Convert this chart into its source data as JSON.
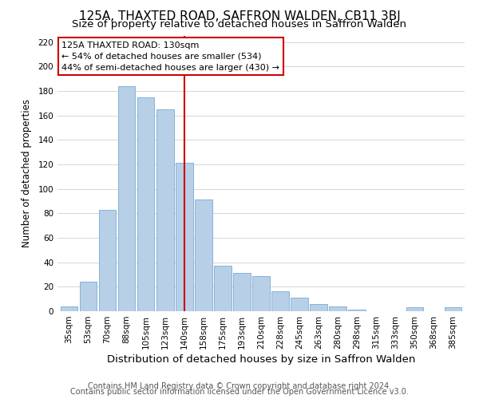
{
  "title": "125A, THAXTED ROAD, SAFFRON WALDEN, CB11 3BJ",
  "subtitle": "Size of property relative to detached houses in Saffron Walden",
  "xlabel": "Distribution of detached houses by size in Saffron Walden",
  "ylabel": "Number of detached properties",
  "bar_labels": [
    "35sqm",
    "53sqm",
    "70sqm",
    "88sqm",
    "105sqm",
    "123sqm",
    "140sqm",
    "158sqm",
    "175sqm",
    "193sqm",
    "210sqm",
    "228sqm",
    "245sqm",
    "263sqm",
    "280sqm",
    "298sqm",
    "315sqm",
    "333sqm",
    "350sqm",
    "368sqm",
    "385sqm"
  ],
  "bar_values": [
    4,
    24,
    83,
    184,
    175,
    165,
    121,
    91,
    37,
    31,
    29,
    16,
    11,
    6,
    4,
    1,
    0,
    0,
    3,
    0,
    3
  ],
  "bar_color": "#b8cfe8",
  "bar_edge_color": "#7aaad0",
  "vline_color": "#cc0000",
  "vline_x_index": 6.0,
  "annotation_title": "125A THAXTED ROAD: 130sqm",
  "annotation_line1": "← 54% of detached houses are smaller (534)",
  "annotation_line2": "44% of semi-detached houses are larger (430) →",
  "annotation_box_color": "#ffffff",
  "annotation_box_edge": "#cc0000",
  "ylim": [
    0,
    225
  ],
  "yticks": [
    0,
    20,
    40,
    60,
    80,
    100,
    120,
    140,
    160,
    180,
    200,
    220
  ],
  "footer1": "Contains HM Land Registry data © Crown copyright and database right 2024.",
  "footer2": "Contains public sector information licensed under the Open Government Licence v3.0.",
  "background_color": "#ffffff",
  "grid_color": "#d0d0d0",
  "title_fontsize": 11,
  "subtitle_fontsize": 9.5,
  "xlabel_fontsize": 9.5,
  "ylabel_fontsize": 8.5,
  "tick_fontsize": 7.5,
  "annotation_fontsize": 8,
  "footer_fontsize": 7
}
